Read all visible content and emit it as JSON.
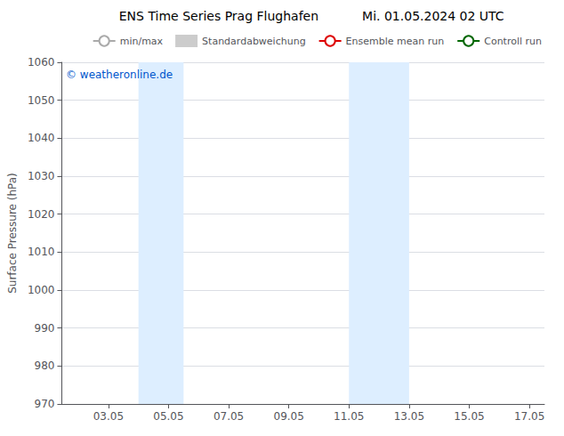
{
  "chart_data": {
    "type": "line",
    "title": "ENS Time Series Prag Flughafen",
    "subtitle": "Mi. 01.05.2024 02 UTC",
    "ylabel": "Surface Pressure (hPa)",
    "xlim": [
      1.5,
      17.55
    ],
    "xticks": [
      {
        "value": 3.05,
        "label": "03.05"
      },
      {
        "value": 5.05,
        "label": "05.05"
      },
      {
        "value": 7.05,
        "label": "07.05"
      },
      {
        "value": 9.05,
        "label": "09.05"
      },
      {
        "value": 11.05,
        "label": "11.05"
      },
      {
        "value": 13.05,
        "label": "13.05"
      },
      {
        "value": 15.05,
        "label": "15.05"
      },
      {
        "value": 17.05,
        "label": "17.05"
      }
    ],
    "ylim": [
      970,
      1060
    ],
    "yticks": [
      970,
      980,
      990,
      1000,
      1010,
      1020,
      1030,
      1040,
      1050,
      1060
    ],
    "grid": "y",
    "legend": "upper right",
    "shaded_bands": [
      {
        "xmin": 4.05,
        "xmax": 5.55,
        "color": "#ddeeff"
      },
      {
        "xmin": 11.05,
        "xmax": 13.05,
        "color": "#ddeeff"
      }
    ],
    "annotations": [
      {
        "text": "© weatheronline.de",
        "color": "#0055cc"
      }
    ],
    "series": [
      {
        "name": "min/max",
        "color": "#aaaaaa",
        "type": "minmax",
        "values": []
      },
      {
        "name": "Standardabweichung",
        "color": "#cccccc",
        "type": "band",
        "values": []
      },
      {
        "name": "Ensemble mean run",
        "color": "#dd0000",
        "type": "line",
        "values": []
      },
      {
        "name": "Controll run",
        "color": "#006600",
        "type": "line",
        "values": []
      }
    ]
  }
}
